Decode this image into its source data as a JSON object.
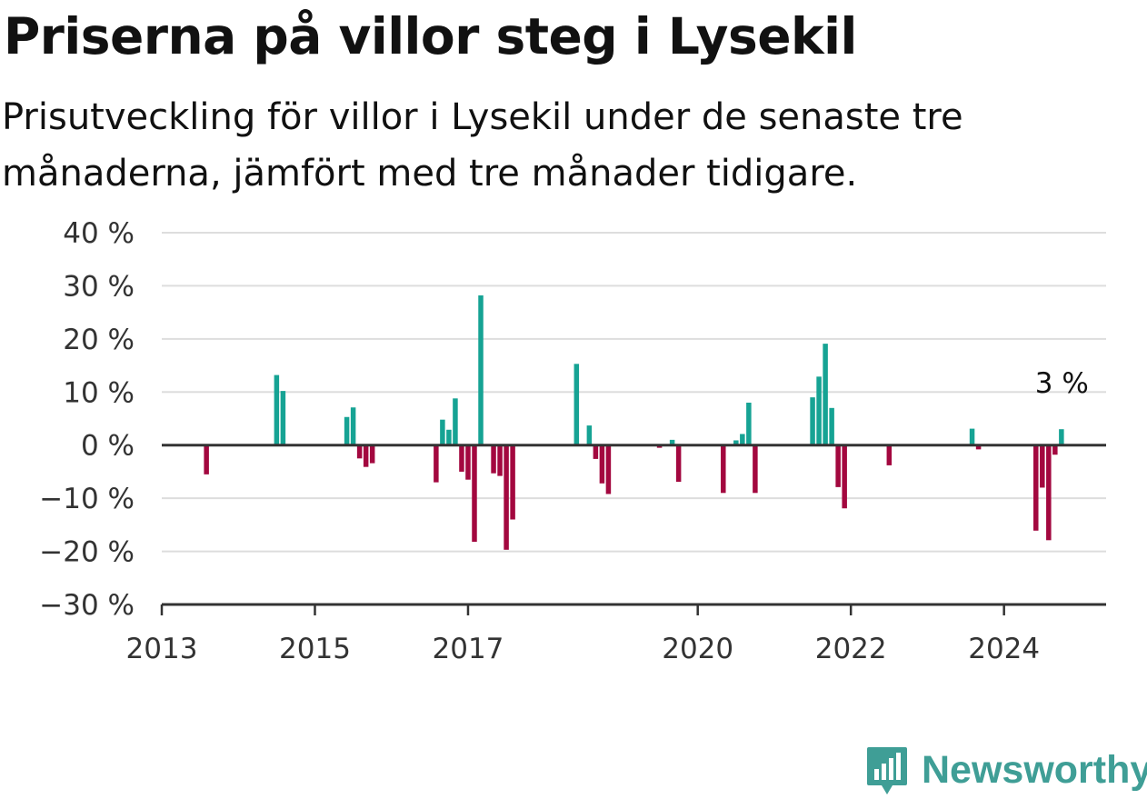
{
  "title": "Priserna på villor steg i Lysekil",
  "subtitle": "Prisutveckling för villor i Lysekil under de senaste tre månaderna, jämfört med tre månader tidigare.",
  "brand": {
    "name": "Newsworthy",
    "icon": "newsworthy-logo-icon"
  },
  "colors": {
    "positive": "#16a394",
    "negative": "#a3083f",
    "grid": "#dddddd",
    "axis": "#333333"
  },
  "chart_data": {
    "type": "bar",
    "title": "Priserna på villor steg i Lysekil",
    "xlabel": "",
    "ylabel": "",
    "ylim": [
      -30,
      40
    ],
    "xlim": [
      "2013-01",
      "2025-05"
    ],
    "grid": true,
    "y_ticks": [
      "40 %",
      "30 %",
      "20 %",
      "10 %",
      "0 %",
      "−10 %",
      "−20 %",
      "−30 %"
    ],
    "x_ticks": [
      "2013",
      "2015",
      "2017",
      "2020",
      "2022",
      "2024"
    ],
    "annotation": "3 %",
    "x": [
      "2013-08",
      "2014-07",
      "2014-08",
      "2015-06",
      "2015-07",
      "2015-08",
      "2015-09",
      "2015-10",
      "2016-08",
      "2016-09",
      "2016-10",
      "2016-11",
      "2016-12",
      "2017-01",
      "2017-02",
      "2017-03",
      "2017-05",
      "2017-06",
      "2017-07",
      "2017-08",
      "2018-06",
      "2018-08",
      "2018-09",
      "2018-10",
      "2018-11",
      "2019-07",
      "2019-09",
      "2019-10",
      "2020-05",
      "2020-07",
      "2020-08",
      "2020-09",
      "2020-10",
      "2021-07",
      "2021-08",
      "2021-09",
      "2021-10",
      "2021-11",
      "2021-12",
      "2022-07",
      "2023-08",
      "2023-09",
      "2024-06",
      "2024-07",
      "2024-08",
      "2024-09",
      "2024-10"
    ],
    "values": [
      -5.5,
      13.2,
      10.2,
      5.3,
      7.1,
      -2.5,
      -4.1,
      -3.4,
      -7.0,
      4.8,
      2.9,
      8.8,
      -5.0,
      -6.5,
      -18.2,
      28.2,
      -5.3,
      -5.8,
      -19.7,
      -14.0,
      15.3,
      3.7,
      -2.6,
      -7.2,
      -9.2,
      -0.5,
      1.0,
      -6.9,
      -9.0,
      0.9,
      2.1,
      8.0,
      -9.0,
      9.0,
      12.9,
      19.1,
      7.0,
      -7.9,
      -11.9,
      -3.8,
      3.1,
      -0.8,
      -16.1,
      -8.0,
      -17.9,
      -1.8,
      3.0
    ]
  }
}
